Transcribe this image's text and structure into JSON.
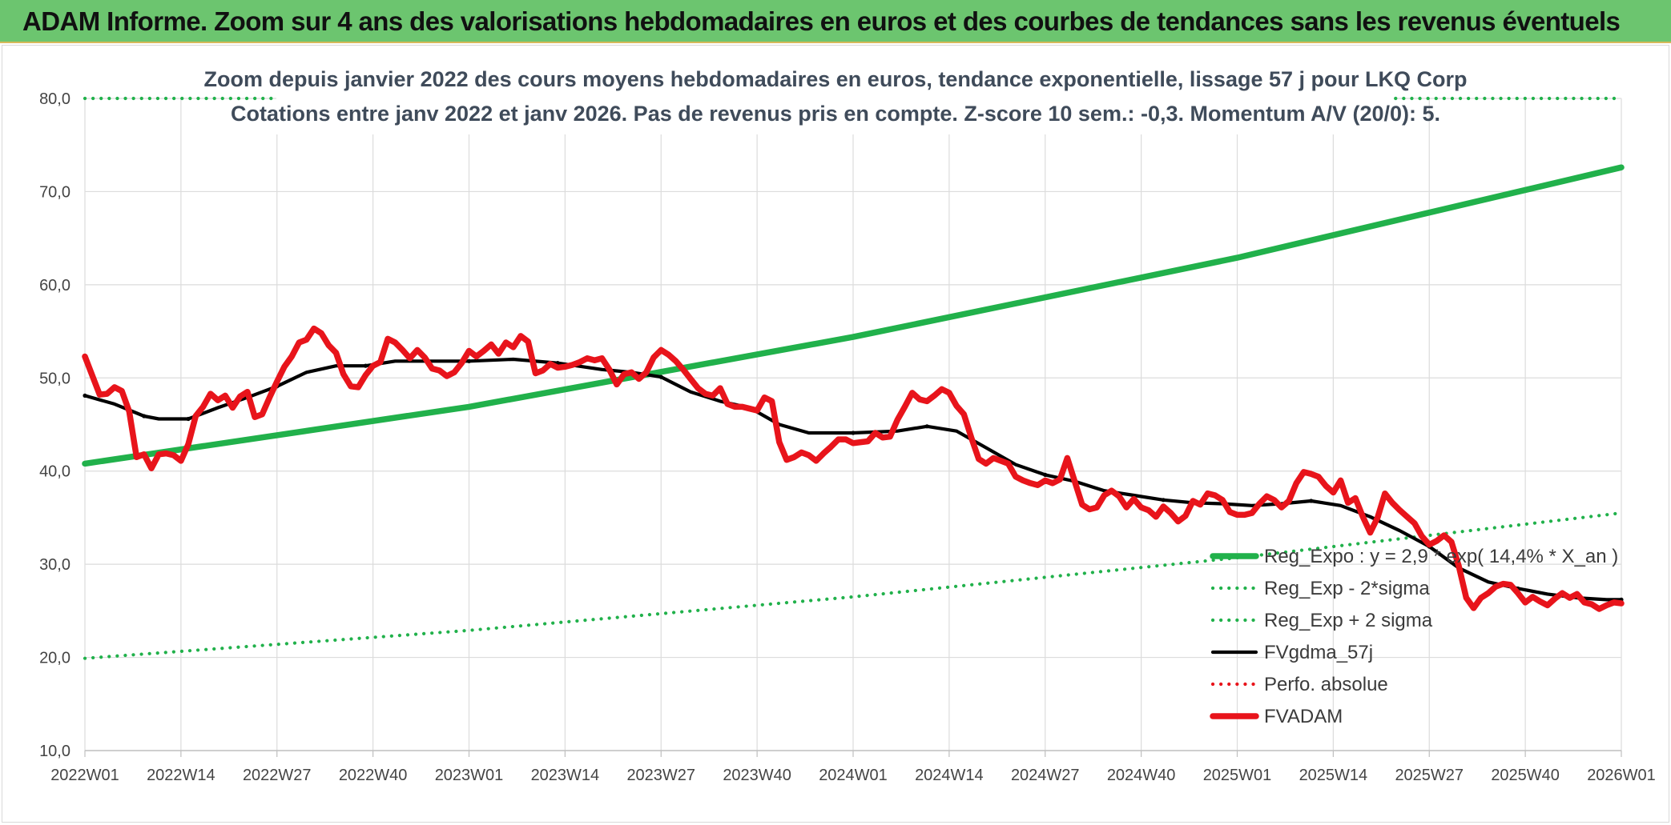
{
  "header": {
    "title": "ADAM Informe. Zoom sur 4 ans des valorisations hebdomadaires en euros et des courbes de tendances sans les revenus éventuels"
  },
  "chart_data": {
    "type": "line",
    "title": "Zoom depuis janvier 2022 des cours moyens hebdomadaires en euros, tendance exponentielle, lissage 57 j pour LKQ Corp",
    "subtitle": "Cotations entre janv 2022 et janv 2026. Pas de revenus pris en compte. Z-score 10 sem.: -0,3. Momentum A/V (20/0): 5.",
    "xlabel": "",
    "ylabel": "",
    "ylim": [
      10,
      80
    ],
    "yticks": [
      "10,0",
      "20,0",
      "30,0",
      "40,0",
      "50,0",
      "60,0",
      "70,0",
      "80,0"
    ],
    "x_range": [
      0,
      208
    ],
    "x_ticks": [
      {
        "label": "2022W01",
        "x": 0
      },
      {
        "label": "2022W14",
        "x": 13
      },
      {
        "label": "2022W27",
        "x": 26
      },
      {
        "label": "2022W40",
        "x": 39
      },
      {
        "label": "2023W01",
        "x": 52
      },
      {
        "label": "2023W14",
        "x": 65
      },
      {
        "label": "2023W27",
        "x": 78
      },
      {
        "label": "2023W40",
        "x": 91
      },
      {
        "label": "2024W01",
        "x": 104
      },
      {
        "label": "2024W14",
        "x": 117
      },
      {
        "label": "2024W27",
        "x": 130
      },
      {
        "label": "2024W40",
        "x": 143
      },
      {
        "label": "2025W01",
        "x": 156
      },
      {
        "label": "2025W14",
        "x": 169
      },
      {
        "label": "2025W27",
        "x": 182
      },
      {
        "label": "2025W40",
        "x": 195
      },
      {
        "label": "2026W01",
        "x": 208
      }
    ],
    "grid": true,
    "legend_position": "bottom-right",
    "series": [
      {
        "name": "Reg_Expo : y = 2,9 * exp( 14,4% *  X_an )",
        "style": "solid-thick",
        "color": "#21b14b",
        "x": [
          0,
          52,
          104,
          156,
          208
        ],
        "values": [
          40.8,
          46.9,
          54.4,
          62.9,
          72.6
        ]
      },
      {
        "name": "Reg_Exp - 2*sigma",
        "style": "dotted",
        "color": "#21b14b",
        "x": [
          0,
          52,
          104,
          156,
          208
        ],
        "values": [
          19.9,
          22.9,
          26.5,
          30.7,
          35.5
        ]
      },
      {
        "name": "Reg_Exp + 2 sigma",
        "style": "dotted",
        "color": "#21b14b",
        "x": [
          0,
          208
        ],
        "values": [
          80.0,
          80.0
        ]
      },
      {
        "name": "FVgdma_57j",
        "style": "solid",
        "color": "#000000",
        "x": [
          0,
          4,
          8,
          10,
          14,
          18,
          22,
          26,
          30,
          34,
          38,
          42,
          46,
          52,
          58,
          64,
          70,
          74,
          78,
          82,
          86,
          90,
          94,
          98,
          104,
          110,
          114,
          118,
          122,
          126,
          130,
          134,
          138,
          142,
          146,
          150,
          154,
          158,
          162,
          166,
          170,
          174,
          178,
          182,
          186,
          190,
          194,
          198,
          202,
          206,
          208
        ],
        "values": [
          48.1,
          47.2,
          45.9,
          45.6,
          45.6,
          46.8,
          47.9,
          49.1,
          50.6,
          51.3,
          51.3,
          51.8,
          51.8,
          51.8,
          52.0,
          51.6,
          50.9,
          50.6,
          50.1,
          48.5,
          47.5,
          46.8,
          45.0,
          44.1,
          44.1,
          44.3,
          44.8,
          44.3,
          42.5,
          40.7,
          39.6,
          38.9,
          37.9,
          37.4,
          36.9,
          36.6,
          36.5,
          36.3,
          36.5,
          36.8,
          36.3,
          35.1,
          33.6,
          31.9,
          29.6,
          28.1,
          27.4,
          26.8,
          26.4,
          26.2,
          26.2
        ],
        "marker_x": [
          0,
          8,
          14,
          26,
          38,
          52,
          64,
          78,
          90,
          104,
          114,
          130,
          146,
          166,
          182,
          194,
          208
        ]
      },
      {
        "name": "Perfo. absolue",
        "style": "dotted",
        "color": "#e8141b",
        "x": [],
        "values": []
      },
      {
        "name": "FVADAM",
        "style": "solid-thick",
        "color": "#e8141b",
        "x": [
          0,
          2,
          3,
          4,
          5,
          6,
          7,
          8,
          9,
          10,
          11,
          12,
          13,
          14,
          15,
          16,
          17,
          18,
          19,
          20,
          21,
          22,
          23,
          24,
          25,
          26,
          27,
          28,
          29,
          30,
          31,
          32,
          33,
          34,
          35,
          36,
          37,
          38,
          39,
          40,
          41,
          42,
          43,
          44,
          45,
          46,
          47,
          48,
          49,
          50,
          51,
          52,
          53,
          54,
          55,
          56,
          57,
          58,
          59,
          60,
          61,
          62,
          63,
          64,
          65,
          66,
          67,
          68,
          69,
          70,
          71,
          72,
          73,
          74,
          75,
          76,
          77,
          78,
          79,
          80,
          81,
          82,
          83,
          84,
          85,
          86,
          87,
          88,
          89,
          90,
          91,
          92,
          93,
          94,
          95,
          96,
          97,
          98,
          99,
          100,
          101,
          102,
          103,
          104,
          105,
          106,
          107,
          108,
          109,
          110,
          111,
          112,
          113,
          114,
          115,
          116,
          117,
          118,
          119,
          120,
          121,
          122,
          123,
          124,
          125,
          126,
          127,
          128,
          129,
          130,
          131,
          132,
          133,
          134,
          135,
          136,
          137,
          138,
          139,
          140,
          141,
          142,
          143,
          144,
          145,
          146,
          147,
          148,
          149,
          150,
          151,
          152,
          153,
          154,
          155,
          156,
          157,
          158,
          159,
          160,
          161,
          162,
          163,
          164,
          165,
          166,
          167,
          168,
          169,
          170,
          171,
          172,
          173,
          174,
          175,
          176,
          177,
          178,
          179,
          180,
          181,
          182,
          183,
          184,
          185,
          186,
          187,
          188,
          189,
          190,
          191,
          192,
          193,
          194,
          195,
          196,
          197,
          198,
          199,
          200,
          201,
          202,
          203,
          204,
          205,
          206,
          207,
          208
        ],
        "values": [
          52.3,
          48.2,
          48.3,
          49.0,
          48.6,
          46.4,
          41.5,
          41.8,
          40.3,
          41.8,
          41.9,
          41.7,
          41.1,
          42.9,
          45.9,
          46.9,
          48.3,
          47.6,
          48.1,
          46.8,
          48.0,
          48.5,
          45.8,
          46.1,
          47.9,
          49.6,
          51.2,
          52.3,
          53.8,
          54.1,
          55.3,
          54.8,
          53.5,
          52.7,
          50.4,
          49.1,
          49.0,
          50.3,
          51.3,
          51.7,
          54.2,
          53.8,
          53.0,
          52.1,
          53.0,
          52.2,
          51.0,
          50.8,
          50.2,
          50.6,
          51.6,
          52.9,
          52.3,
          52.9,
          53.6,
          52.6,
          53.8,
          53.3,
          54.5,
          53.9,
          50.5,
          50.8,
          51.5,
          51.1,
          51.2,
          51.4,
          51.7,
          52.1,
          51.9,
          52.1,
          50.9,
          49.3,
          50.4,
          50.6,
          49.9,
          50.6,
          52.2,
          53.0,
          52.5,
          51.8,
          50.9,
          49.9,
          48.9,
          48.3,
          48.1,
          48.9,
          47.2,
          46.9,
          46.9,
          46.7,
          46.5,
          47.9,
          47.5,
          43.1,
          41.2,
          41.5,
          42.0,
          41.7,
          41.1,
          41.9,
          42.6,
          43.4,
          43.4,
          43.0,
          43.1,
          43.2,
          44.1,
          43.6,
          43.7,
          45.5,
          46.9,
          48.4,
          47.7,
          47.5,
          48.1,
          48.8,
          48.4,
          47.0,
          46.1,
          43.6,
          41.3,
          40.8,
          41.4,
          41.1,
          40.8,
          39.4,
          39.0,
          38.7,
          38.5,
          39.0,
          38.7,
          39.1,
          41.4,
          38.9,
          36.4,
          35.9,
          36.1,
          37.4,
          37.9,
          37.3,
          36.1,
          37.0,
          36.1,
          35.8,
          35.1,
          36.2,
          35.5,
          34.6,
          35.2,
          36.8,
          36.4,
          37.6,
          37.4,
          36.9,
          35.6,
          35.3,
          35.3,
          35.5,
          36.5,
          37.3,
          36.9,
          36.1,
          36.8,
          38.7,
          39.9,
          39.7,
          39.4,
          38.4,
          37.7,
          39.0,
          36.6,
          37.1,
          35.1,
          33.4,
          35.0,
          37.6,
          36.6,
          35.8,
          35.1,
          34.4,
          33.0,
          32.1,
          32.5,
          33.1,
          32.4,
          29.8,
          26.4,
          25.3,
          26.4,
          26.9,
          27.6,
          27.9,
          27.8,
          26.9,
          25.9,
          26.5,
          26.0,
          25.6,
          26.3,
          26.9,
          26.4,
          26.8,
          25.9,
          25.7,
          25.2,
          25.6,
          25.9,
          25.8
        ]
      }
    ]
  }
}
